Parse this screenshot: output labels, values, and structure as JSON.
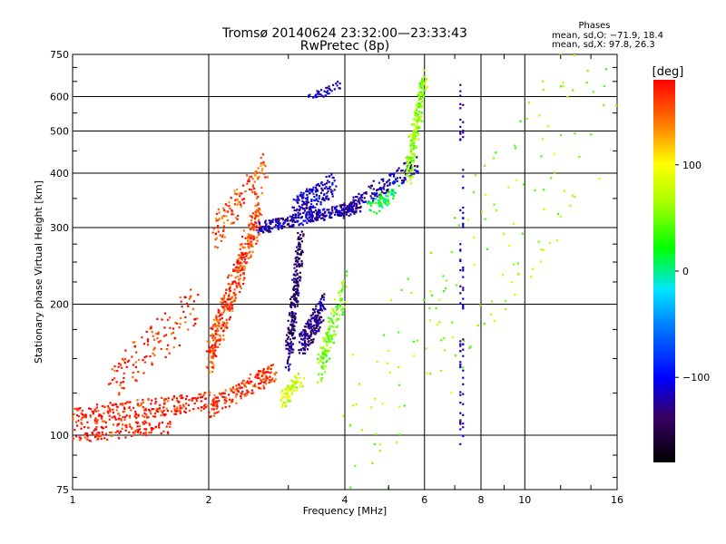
{
  "chart_data": {
    "type": "scatter",
    "title": "Tromsø 20140624 23:32:00—23:33:43",
    "subtitle": "RwPretec (8p)",
    "xlabel": "Frequency [MHz]",
    "ylabel": "Stationary phase Virtual Height [km]",
    "x_scale": "log",
    "y_scale": "log",
    "xlim": [
      1,
      16
    ],
    "ylim": [
      75,
      750
    ],
    "x_ticks": [
      1,
      2,
      4,
      6,
      8,
      10,
      16
    ],
    "x_tick_labels": [
      "1",
      "2",
      "4",
      "6",
      "8",
      "10",
      "16"
    ],
    "y_ticks": [
      75,
      100,
      200,
      300,
      400,
      500,
      600,
      750
    ],
    "y_tick_labels": [
      "75",
      "100",
      "200",
      "300",
      "400",
      "500",
      "600",
      "750"
    ],
    "grid": true,
    "phases_box": {
      "heading": "Phases",
      "line1": "mean, sd,O: −71.9, 18.4",
      "line2": "mean, sd,X:  97.8, 26.3"
    },
    "colorbar": {
      "label": "[deg]",
      "range": [
        -180,
        180
      ],
      "ticks": [
        100,
        0,
        -100
      ],
      "tick_labels": [
        "100",
        "0",
        "−100"
      ],
      "colormap": "rainbow"
    },
    "point_series": [
      {
        "f0": 1.0,
        "f1": 1.65,
        "h0": 100,
        "h1": 105,
        "phase": 175,
        "n": 120,
        "spread": 0.04
      },
      {
        "f0": 1.0,
        "f1": 2.0,
        "h0": 110,
        "h1": 120,
        "phase": 170,
        "n": 260,
        "spread": 0.05
      },
      {
        "f0": 1.2,
        "f1": 1.9,
        "h0": 130,
        "h1": 200,
        "phase": 170,
        "n": 130,
        "spread": 0.12
      },
      {
        "f0": 2.0,
        "f1": 2.8,
        "h0": 115,
        "h1": 140,
        "phase": 165,
        "n": 180,
        "spread": 0.05
      },
      {
        "f0": 2.0,
        "f1": 2.6,
        "h0": 150,
        "h1": 330,
        "phase": 160,
        "n": 380,
        "spread": 0.1
      },
      {
        "f0": 2.05,
        "f1": 2.7,
        "h0": 290,
        "h1": 420,
        "phase": 155,
        "n": 120,
        "spread": 0.08
      },
      {
        "f0": 2.6,
        "f1": 4.3,
        "h0": 300,
        "h1": 335,
        "phase": -120,
        "n": 320,
        "spread": 0.03
      },
      {
        "f0": 3.1,
        "f1": 3.8,
        "h0": 330,
        "h1": 380,
        "phase": -110,
        "n": 160,
        "spread": 0.06
      },
      {
        "f0": 4.0,
        "f1": 5.8,
        "h0": 330,
        "h1": 420,
        "phase": -120,
        "n": 160,
        "spread": 0.05
      },
      {
        "f0": 4.5,
        "f1": 5.2,
        "h0": 330,
        "h1": 360,
        "phase": 15,
        "n": 60,
        "spread": 0.04
      },
      {
        "f0": 5.5,
        "f1": 6.0,
        "h0": 400,
        "h1": 650,
        "phase": 60,
        "n": 220,
        "spread": 0.07
      },
      {
        "f0": 3.0,
        "f1": 3.2,
        "h0": 150,
        "h1": 280,
        "phase": -140,
        "n": 230,
        "spread": 0.08
      },
      {
        "f0": 3.2,
        "f1": 3.6,
        "h0": 160,
        "h1": 200,
        "phase": -130,
        "n": 190,
        "spread": 0.07
      },
      {
        "f0": 2.9,
        "f1": 3.2,
        "h0": 120,
        "h1": 135,
        "phase": 80,
        "n": 80,
        "spread": 0.04
      },
      {
        "f0": 3.5,
        "f1": 4.0,
        "h0": 140,
        "h1": 220,
        "phase": 50,
        "n": 140,
        "spread": 0.08
      },
      {
        "f0": 3.3,
        "f1": 3.9,
        "h0": 590,
        "h1": 640,
        "phase": -110,
        "n": 40,
        "spread": 0.02
      },
      {
        "f0": 4.0,
        "f1": 16.0,
        "h0": 90,
        "h1": 700,
        "phase": 60,
        "n": 170,
        "spread": 0.5
      }
    ],
    "vertical_streak_freqs": [
      7.2,
      7.3
    ],
    "legend": "none"
  }
}
